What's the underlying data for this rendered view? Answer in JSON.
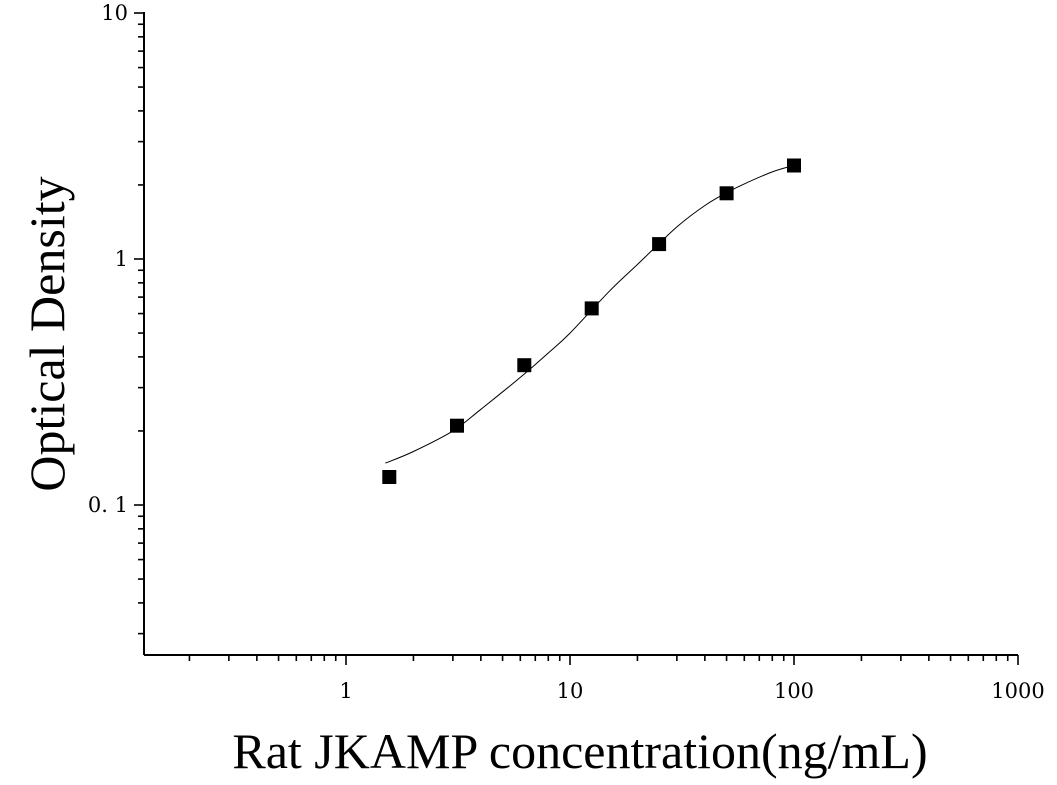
{
  "chart_data": {
    "type": "scatter",
    "title": "",
    "xlabel": "Rat JKAMP concentration(ng/mL)",
    "ylabel": "Optical Density",
    "xscale": "log",
    "yscale": "log",
    "xlim": [
      0.12,
      1000
    ],
    "ylim": [
      0.025,
      10
    ],
    "x_ticks": [
      1,
      10,
      100,
      1000
    ],
    "x_tick_labels": [
      "1",
      "10",
      "100",
      "1000"
    ],
    "y_ticks": [
      0.1,
      1,
      10
    ],
    "y_tick_labels": [
      "0. 1",
      "1",
      "10"
    ],
    "grid": false,
    "legend": "none",
    "series": [
      {
        "marker": "square",
        "color": "#000000",
        "x": [
          1.56,
          3.13,
          6.25,
          12.5,
          25,
          50,
          100
        ],
        "y": [
          0.13,
          0.21,
          0.37,
          0.63,
          1.15,
          1.85,
          2.4
        ]
      }
    ],
    "fit_curve": {
      "style": "solid",
      "color": "#000000",
      "x": [
        1.5,
        2,
        3,
        4,
        6,
        8,
        10,
        15,
        20,
        30,
        40,
        50,
        60,
        80,
        100
      ],
      "y": [
        0.148,
        0.165,
        0.2,
        0.245,
        0.33,
        0.415,
        0.5,
        0.74,
        0.95,
        1.35,
        1.65,
        1.86,
        2.02,
        2.26,
        2.4
      ]
    }
  }
}
